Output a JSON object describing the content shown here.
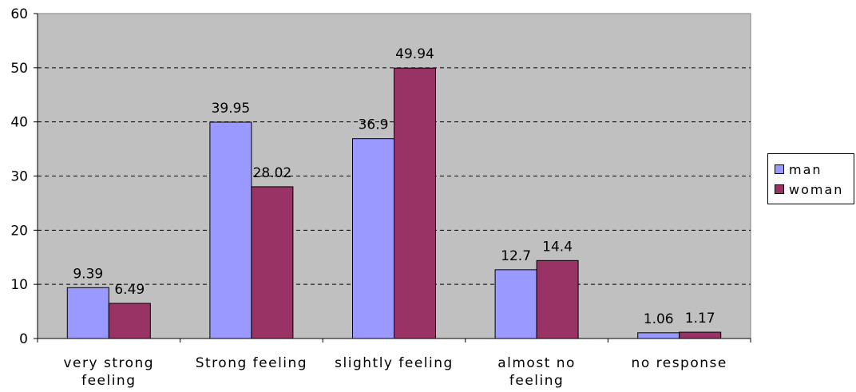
{
  "chart_data": {
    "type": "bar",
    "categories": [
      [
        "very strong",
        "feeling"
      ],
      [
        "Strong feeling"
      ],
      [
        "slightly feeling"
      ],
      [
        "almost no",
        "feeling"
      ],
      [
        "no response"
      ]
    ],
    "series": [
      {
        "name": "man",
        "color": "#9999ff",
        "values": [
          9.39,
          39.95,
          36.9,
          12.7,
          1.06
        ],
        "labels": [
          "9.39",
          "39.95",
          "36.9",
          "12.7",
          "1.06"
        ]
      },
      {
        "name": "woman",
        "color": "#993366",
        "values": [
          6.49,
          28.02,
          49.94,
          14.4,
          1.17
        ],
        "labels": [
          "6.49",
          "28.02",
          "49.94",
          "14.4",
          "1.17"
        ]
      }
    ],
    "ylim": [
      0,
      60
    ],
    "yticks": [
      "0",
      "10",
      "20",
      "30",
      "40",
      "50",
      "60"
    ],
    "grid": true,
    "legend_position": "right",
    "plot_background": "#c0c0c0"
  }
}
